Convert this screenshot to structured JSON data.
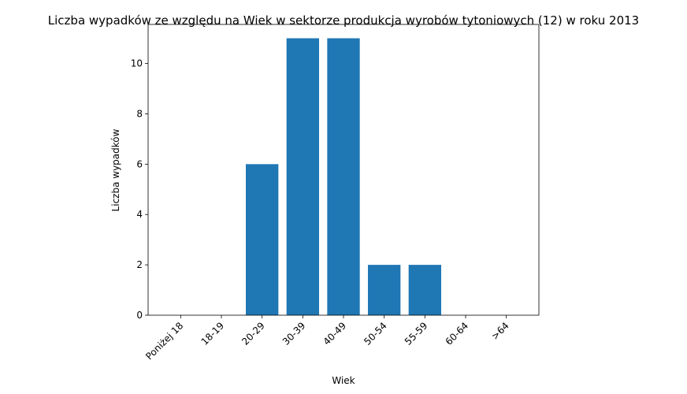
{
  "chart_data": {
    "type": "bar",
    "title": "Liczba wypadków ze względu na Wiek w sektorze produkcja wyrobów tytoniowych  (12)   w roku 2013",
    "xlabel": "Wiek",
    "ylabel": "Liczba wypadków",
    "categories": [
      "Poniżej 18",
      "18-19",
      "20-29",
      "30-39",
      "40-49",
      "50-54",
      "55-59",
      "60-64",
      ">64"
    ],
    "values": [
      0,
      0,
      6,
      11,
      11,
      2,
      2,
      0,
      0
    ],
    "ylim": [
      0,
      11.55
    ],
    "yticks": [
      0,
      2,
      4,
      6,
      8,
      10
    ],
    "grid": false,
    "colors": {
      "bar": "#1f77b4",
      "axis": "#000000"
    }
  }
}
